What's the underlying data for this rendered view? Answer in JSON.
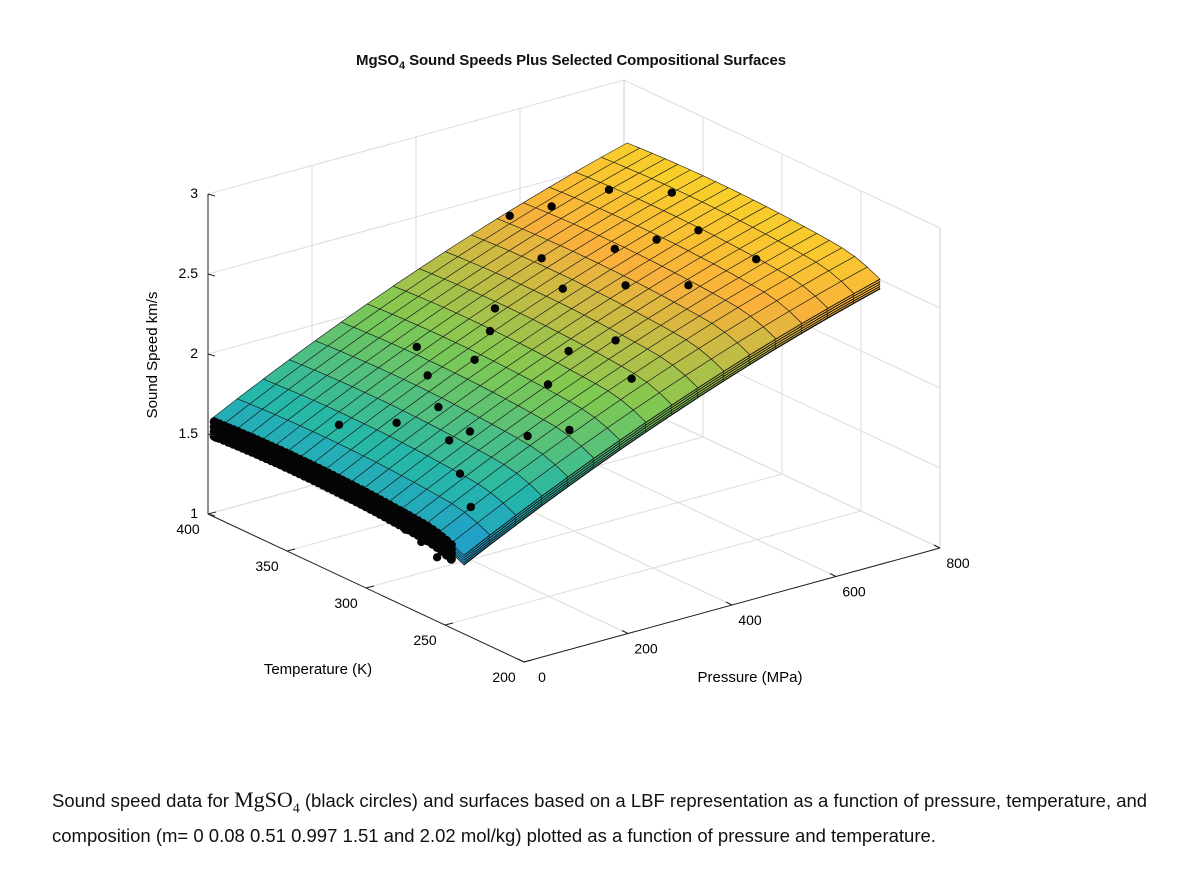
{
  "chart_data": {
    "type": "surface3d",
    "title_parts": {
      "pre": "MgSO",
      "sub": "4",
      "post": " Sound Speeds Plus Selected Compositional Surfaces"
    },
    "zlabel": "Sound Speed km/s",
    "ylabel": "Temperature (K)",
    "xlabel": "Pressure (MPa)",
    "x_ticks": [
      "0",
      "200",
      "400",
      "600",
      "800"
    ],
    "y_ticks": [
      "200",
      "250",
      "300",
      "350",
      "400"
    ],
    "z_ticks": [
      "1",
      "1.5",
      "2",
      "2.5",
      "3"
    ],
    "xlim": [
      0,
      800
    ],
    "ylim": [
      200,
      400
    ],
    "zlim": [
      1,
      3
    ],
    "grid": true,
    "colormap": [
      "#3e26a8",
      "#1f8de3",
      "#25b7a9",
      "#81c951",
      "#f9b13b",
      "#f8e21f"
    ],
    "series": [
      {
        "name": "m = 0",
        "molality": 0
      },
      {
        "name": "m = 0.08",
        "molality": 0.08
      },
      {
        "name": "m = 0.51",
        "molality": 0.51
      },
      {
        "name": "m = 0.997",
        "molality": 0.997
      },
      {
        "name": "m = 1.51",
        "molality": 1.51
      },
      {
        "name": "m = 2.02",
        "molality": 2.02
      }
    ],
    "data_points": [
      [
        0,
        255,
        1.4
      ],
      [
        0,
        265,
        1.45
      ],
      [
        0,
        275,
        1.48
      ],
      [
        0,
        285,
        1.51
      ],
      [
        0,
        295,
        1.53
      ],
      [
        0,
        305,
        1.55
      ],
      [
        0,
        315,
        1.56
      ],
      [
        0,
        325,
        1.56
      ],
      [
        0,
        335,
        1.56
      ],
      [
        0,
        345,
        1.55
      ],
      [
        0,
        355,
        1.54
      ],
      [
        0,
        365,
        1.53
      ],
      [
        0,
        375,
        1.52
      ],
      [
        0,
        385,
        1.51
      ],
      [
        0,
        395,
        1.5
      ],
      [
        80,
        260,
        1.62
      ],
      [
        120,
        280,
        1.7
      ],
      [
        160,
        300,
        1.78
      ],
      [
        200,
        320,
        1.86
      ],
      [
        240,
        340,
        1.93
      ],
      [
        280,
        360,
        1.98
      ],
      [
        100,
        350,
        1.7
      ],
      [
        150,
        330,
        1.76
      ],
      [
        200,
        300,
        1.8
      ],
      [
        250,
        280,
        1.82
      ],
      [
        300,
        270,
        1.86
      ],
      [
        350,
        300,
        1.96
      ],
      [
        300,
        330,
        2.02
      ],
      [
        360,
        340,
        2.1
      ],
      [
        400,
        350,
        2.16
      ],
      [
        420,
        310,
        2.06
      ],
      [
        450,
        280,
        2.0
      ],
      [
        480,
        300,
        2.12
      ],
      [
        500,
        340,
        2.24
      ],
      [
        520,
        360,
        2.32
      ],
      [
        560,
        320,
        2.3
      ],
      [
        600,
        340,
        2.4
      ],
      [
        620,
        300,
        2.34
      ],
      [
        650,
        330,
        2.46
      ],
      [
        700,
        320,
        2.52
      ],
      [
        720,
        290,
        2.46
      ],
      [
        740,
        350,
        2.58
      ],
      [
        680,
        370,
        2.56
      ],
      [
        600,
        380,
        2.48
      ],
      [
        550,
        390,
        2.42
      ]
    ]
  },
  "caption": {
    "pre": "Sound speed data for ",
    "formula": "MgSO",
    "formula_sub": "4",
    "post": " (black circles) and surfaces based on a LBF representation as a function of pressure, temperature, and composition (m= 0  0.08 0.51 0.997 1.51 and 2.02 mol/kg) plotted as a function of pressure and temperature."
  }
}
